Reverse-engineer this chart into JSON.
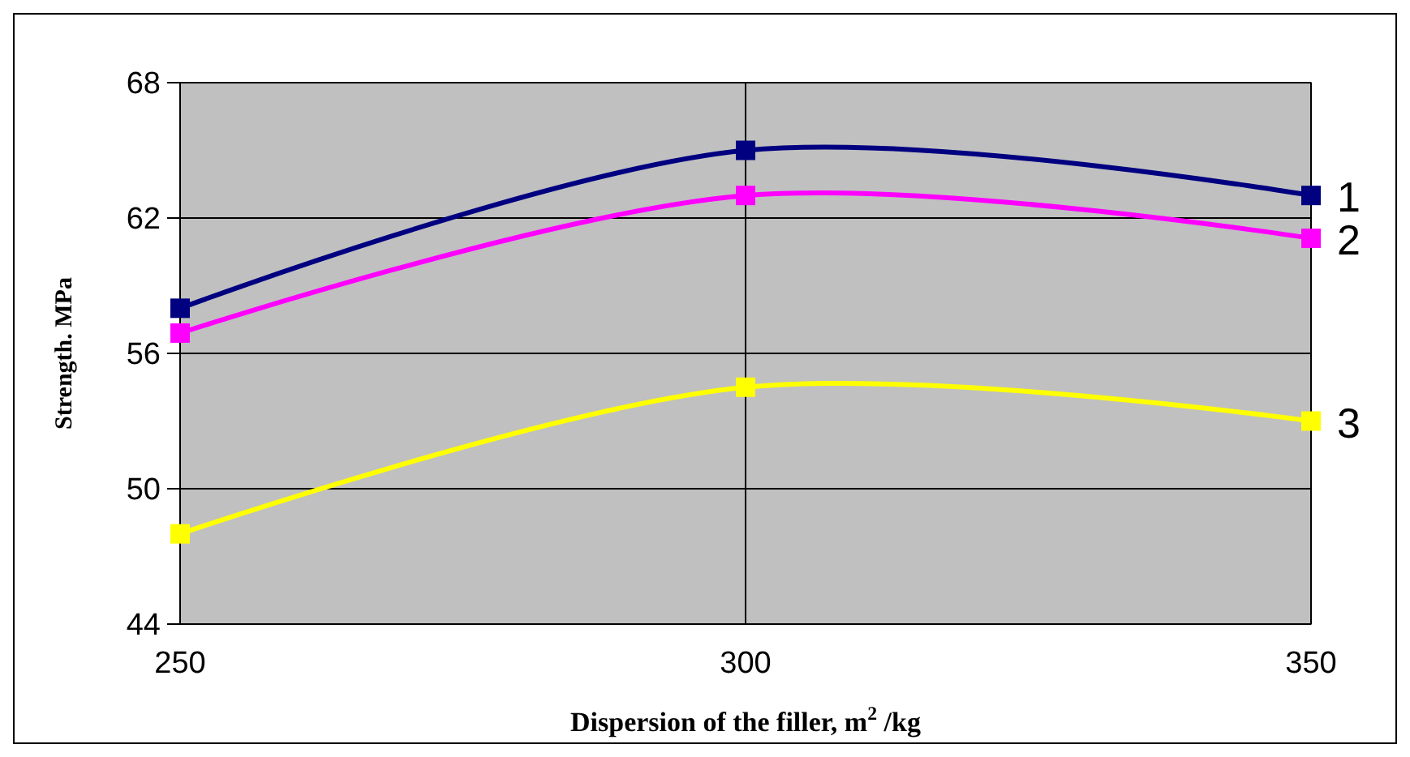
{
  "chart_data": {
    "type": "line",
    "xlabel": "Dispersion of the filler, m$^{2}$ /kg",
    "ylabel": "Strength.  MPa",
    "x": [
      250,
      300,
      350
    ],
    "xlim": [
      250,
      350
    ],
    "xticks": [
      250,
      300,
      350
    ],
    "ylim": [
      44,
      68
    ],
    "yticks": [
      44,
      50,
      56,
      62,
      68
    ],
    "grid": true,
    "marker": "square",
    "line_style": "solid",
    "series": [
      {
        "name": "1",
        "color": "#000080",
        "values": [
          58.0,
          65.0,
          63.0
        ]
      },
      {
        "name": "2",
        "color": "#ff00ff",
        "values": [
          56.9,
          63.0,
          61.1
        ]
      },
      {
        "name": "3",
        "color": "#ffff00",
        "values": [
          48.0,
          54.5,
          53.0
        ]
      }
    ]
  }
}
